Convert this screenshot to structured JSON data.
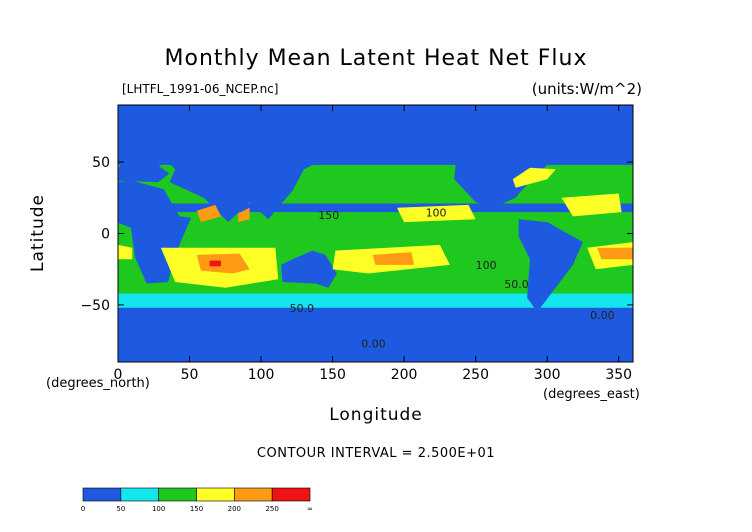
{
  "chart_data": {
    "type": "heatmap",
    "title": "Monthly Mean Latent Heat Net Flux",
    "source_label": "[LHTFL_1991-06_NCEP.nc]",
    "units_label": "(units:W/m^2)",
    "xlabel": "Longitude",
    "ylabel": "Latitude",
    "x_unit_label": "(degrees_east)",
    "y_unit_label": "(degrees_north)",
    "xlim": [
      0,
      360
    ],
    "ylim": [
      -90,
      90
    ],
    "x_ticks": [
      0,
      50,
      100,
      150,
      200,
      250,
      300,
      350
    ],
    "y_ticks": [
      -50,
      0,
      50
    ],
    "contour_interval_text": "CONTOUR INTERVAL = 2.500E+01",
    "contour_labels": [
      "0.00",
      "50.0",
      "100",
      "150",
      "100",
      "50.0",
      "0.00"
    ],
    "colorbar": {
      "ticks": [
        "0",
        "50",
        "100",
        "150",
        "200",
        "250",
        "∞"
      ],
      "colors": [
        "#1e5ae0",
        "#14e6ee",
        "#1ec81e",
        "#ffff28",
        "#ff9a14",
        "#ee1414"
      ]
    },
    "levels_color": {
      "0": "#1e5ae0",
      "1": "#14e6ee",
      "2": "#1ec81e",
      "3": "#ffff28",
      "4": "#ff9a14",
      "5": "#ee1414",
      "land": "#1e5ae0"
    }
  }
}
